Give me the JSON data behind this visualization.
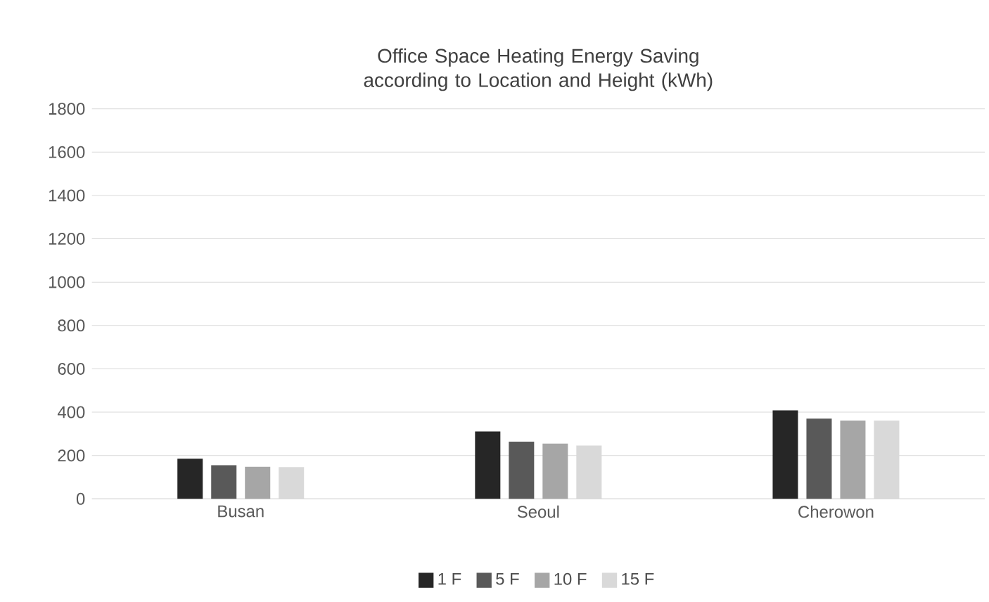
{
  "chart_data": {
    "type": "bar",
    "title": "Office Space Heating Energy  Saving\naccording to Location and Height (kWh)",
    "categories": [
      "Busan",
      "Seoul",
      "Cherowon"
    ],
    "series": [
      {
        "name": "1 F",
        "color": "#262626",
        "values": [
          185,
          311,
          408
        ]
      },
      {
        "name": "5 F",
        "color": "#595959",
        "values": [
          155,
          264,
          370
        ]
      },
      {
        "name": "10 F",
        "color": "#a6a6a6",
        "values": [
          148,
          255,
          361
        ]
      },
      {
        "name": "15 F",
        "color": "#d9d9d9",
        "values": [
          146,
          246,
          361
        ]
      }
    ],
    "ylim": [
      0,
      1800
    ],
    "yticks": [
      0,
      200,
      400,
      600,
      800,
      1000,
      1200,
      1400,
      1600,
      1800
    ],
    "grid": "y",
    "legend": "bottom"
  }
}
